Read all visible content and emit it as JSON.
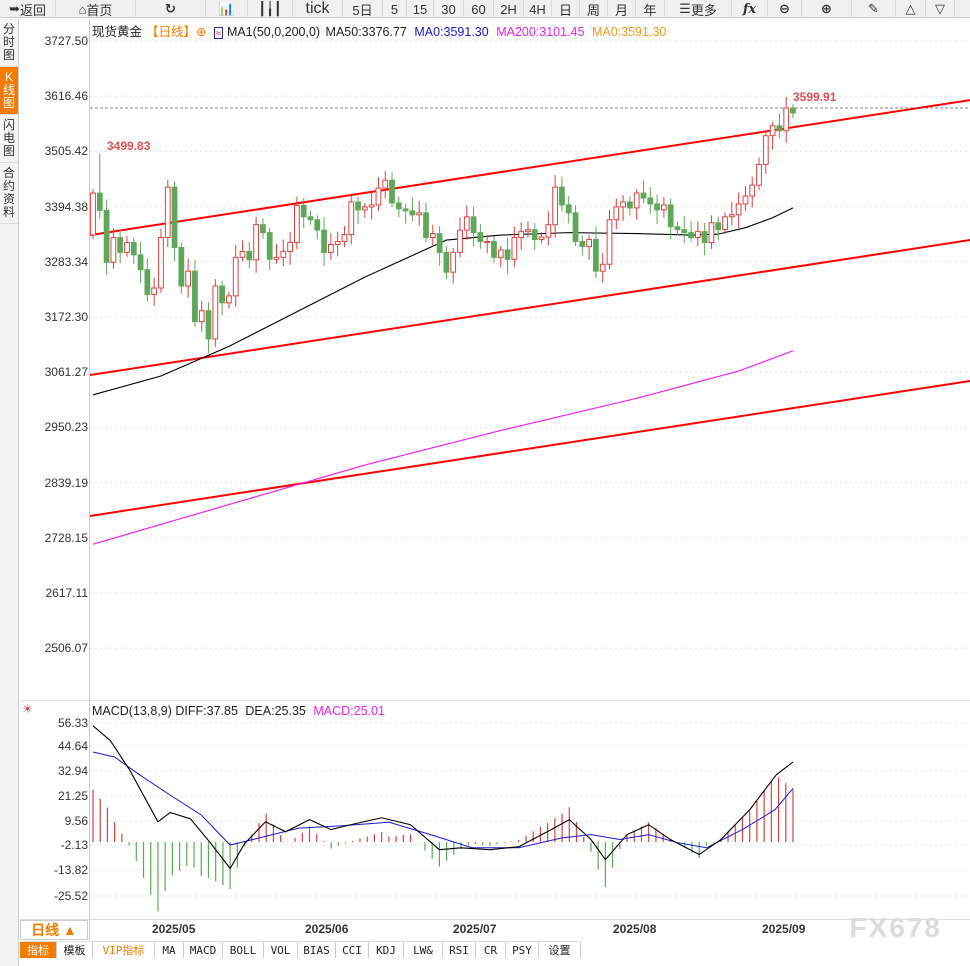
{
  "toolbar": {
    "items": [
      {
        "label": "返回",
        "icon": "back-arrow-icon",
        "w": 56
      },
      {
        "label": "首页",
        "icon": "home-icon",
        "w": 80
      },
      {
        "label": "",
        "icon": "refresh-icon",
        "w": 70
      },
      {
        "label": "",
        "icon": "line-chart-icon",
        "w": 42
      },
      {
        "label": "",
        "icon": "candlestick-icon",
        "w": 45
      },
      {
        "label": "tick",
        "w": 50
      },
      {
        "label": "5日",
        "w": 40
      },
      {
        "label": "5",
        "w": 24
      },
      {
        "label": "15",
        "w": 27
      },
      {
        "label": "30",
        "w": 30
      },
      {
        "label": "60",
        "w": 30
      },
      {
        "label": "2H",
        "w": 30
      },
      {
        "label": "4H",
        "w": 28
      },
      {
        "label": "日",
        "w": 28
      },
      {
        "label": "周",
        "w": 28
      },
      {
        "label": "月",
        "w": 28
      },
      {
        "label": "年",
        "w": 29
      },
      {
        "label": "更多",
        "icon": "menu-icon",
        "w": 67
      },
      {
        "label": "fx",
        "w": 36
      },
      {
        "label": "",
        "icon": "zoom-out-icon",
        "w": 34
      },
      {
        "label": "",
        "icon": "zoom-in-icon",
        "w": 50
      },
      {
        "label": "",
        "icon": "pen-icon",
        "w": 44
      },
      {
        "label": "",
        "icon": "triangle-up-icon",
        "w": 30
      },
      {
        "label": "",
        "icon": "triangle-down-icon",
        "w": 29
      }
    ]
  },
  "sidebar": [
    "分时图",
    "K线图",
    "闪电图",
    "合约资料"
  ],
  "header": {
    "name": "现货黄金",
    "period": "【日线】",
    "indicator": "MA1(50,0,200,0)",
    "ma50": "MA50:3376.77",
    "ma0": "MA0:3591.30",
    "ma200": "MA200:3101.45",
    "ma0b": "MA0:3591.30"
  },
  "colors": {
    "up": "#e04040",
    "down": "#5fa85a",
    "ma50": "#000000",
    "ma200": "#ee22ee",
    "channel": "#ff0000",
    "diff": "#000000",
    "dea": "#1a1ad0",
    "orange": "#f57c00"
  },
  "yaxis": [
    "3727.50",
    "3616.46",
    "3505.42",
    "3394.38",
    "3283.34",
    "3172.30",
    "3061.27",
    "2950.23",
    "2839.19",
    "2728.15",
    "2617.11",
    "2506.07"
  ],
  "macd_header": {
    "title": "MACD(13,8,9)",
    "diff": "DIFF:37.85",
    "dea": "DEA:25.35",
    "macd": "MACD:25.01"
  },
  "macd_yaxis": [
    "56.33",
    "44.64",
    "32.94",
    "21.25",
    "9.56",
    "-2.13",
    "-13.82",
    "-25.52"
  ],
  "dates": [
    "2025/05",
    "2025/06",
    "2025/07",
    "2025/08",
    "2025/09"
  ],
  "period_button": "日线 ▲",
  "tabs": [
    "指标",
    "模板",
    "VIP指标",
    "MA",
    "MACD",
    "BOLL",
    "VOL",
    "BIAS",
    "CCI",
    "KDJ",
    "LW&",
    "RSI",
    "CR",
    "PSY",
    "设置"
  ],
  "watermark": "FX678",
  "chart_data": {
    "type": "candlestick",
    "ylim": [
      2506.07,
      3727.5
    ],
    "first_open": 3335,
    "high_label": "3499.83",
    "high_label_index": 1,
    "last_high_label": "3599.91",
    "current_price": 3592,
    "closes": [
      3420,
      3385,
      3280,
      3330,
      3300,
      3320,
      3295,
      3265,
      3215,
      3228,
      3330,
      3432,
      3310,
      3232,
      3262,
      3160,
      3182,
      3125,
      3232,
      3198,
      3212,
      3290,
      3302,
      3285,
      3356,
      3340,
      3286,
      3290,
      3302,
      3320,
      3395,
      3372,
      3366,
      3345,
      3300,
      3316,
      3322,
      3336,
      3402,
      3386,
      3392,
      3396,
      3430,
      3446,
      3400,
      3388,
      3384,
      3376,
      3380,
      3330,
      3338,
      3300,
      3260,
      3300,
      3345,
      3372,
      3340,
      3322,
      3322,
      3290,
      3305,
      3286,
      3330,
      3342,
      3346,
      3326,
      3331,
      3356,
      3432,
      3396,
      3380,
      3322,
      3312,
      3326,
      3262,
      3276,
      3366,
      3392,
      3402,
      3390,
      3420,
      3410,
      3398,
      3386,
      3396,
      3352,
      3346,
      3340,
      3330,
      3342,
      3320,
      3360,
      3346,
      3372,
      3376,
      3398,
      3414,
      3436,
      3478,
      3536,
      3556,
      3546,
      3592,
      3582
    ],
    "ma50": [
      [
        0,
        3012
      ],
      [
        10,
        3050
      ],
      [
        20,
        3110
      ],
      [
        30,
        3180
      ],
      [
        40,
        3250
      ],
      [
        48,
        3300
      ],
      [
        52,
        3325
      ],
      [
        60,
        3335
      ],
      [
        70,
        3340
      ],
      [
        80,
        3338
      ],
      [
        88,
        3335
      ],
      [
        92,
        3337
      ],
      [
        96,
        3350
      ],
      [
        100,
        3370
      ],
      [
        103,
        3390
      ]
    ],
    "ma200": [
      [
        0,
        2710
      ],
      [
        20,
        2790
      ],
      [
        40,
        2870
      ],
      [
        60,
        2940
      ],
      [
        80,
        3005
      ],
      [
        95,
        3060
      ],
      [
        103,
        3101
      ]
    ],
    "channels": [
      {
        "start": 3335,
        "end": 3608
      },
      {
        "start": 3052,
        "end": 3325
      },
      {
        "start": 2767,
        "end": 3040
      }
    ],
    "macd": {
      "ylim": [
        -25.52,
        56.33
      ],
      "diff": [
        [
          0,
          55
        ],
        [
          2.4,
          48
        ],
        [
          5.1,
          34
        ],
        [
          9,
          9.6
        ],
        [
          10.7,
          14
        ],
        [
          13.5,
          11
        ],
        [
          16.3,
          -0.5
        ],
        [
          19,
          -12.5
        ],
        [
          21,
          -0.8
        ],
        [
          23.9,
          9.6
        ],
        [
          26.7,
          4.9
        ],
        [
          30,
          10.6
        ],
        [
          33,
          5.9
        ],
        [
          35.7,
          8.2
        ],
        [
          40,
          11.5
        ],
        [
          44,
          8.2
        ],
        [
          48,
          -3.6
        ],
        [
          51,
          -2.7
        ],
        [
          55,
          -3.6
        ],
        [
          59,
          -2.2
        ],
        [
          63.5,
          5.9
        ],
        [
          66,
          10.6
        ],
        [
          69,
          1.2
        ],
        [
          71,
          -8.3
        ],
        [
          74,
          3.5
        ],
        [
          77,
          8.2
        ],
        [
          80,
          1.2
        ],
        [
          84,
          -5.9
        ],
        [
          87,
          1.2
        ],
        [
          91,
          15.3
        ],
        [
          94.7,
          31.9
        ],
        [
          97,
          37.85
        ]
      ],
      "dea": [
        [
          0,
          42.6
        ],
        [
          3,
          40.2
        ],
        [
          6.5,
          31.7
        ],
        [
          10.7,
          22.2
        ],
        [
          15,
          12.8
        ],
        [
          19,
          -1.4
        ],
        [
          23,
          1.9
        ],
        [
          28.5,
          6.6
        ],
        [
          34,
          7.6
        ],
        [
          41,
          9.4
        ],
        [
          47,
          3.3
        ],
        [
          52.5,
          -2.7
        ],
        [
          59,
          -2.7
        ],
        [
          65,
          2.0
        ],
        [
          69,
          3.5
        ],
        [
          73,
          1.2
        ],
        [
          77,
          3.5
        ],
        [
          81,
          -0.3
        ],
        [
          85,
          -2.7
        ],
        [
          90,
          5.9
        ],
        [
          94.5,
          15.3
        ],
        [
          97,
          25.35
        ]
      ]
    }
  }
}
